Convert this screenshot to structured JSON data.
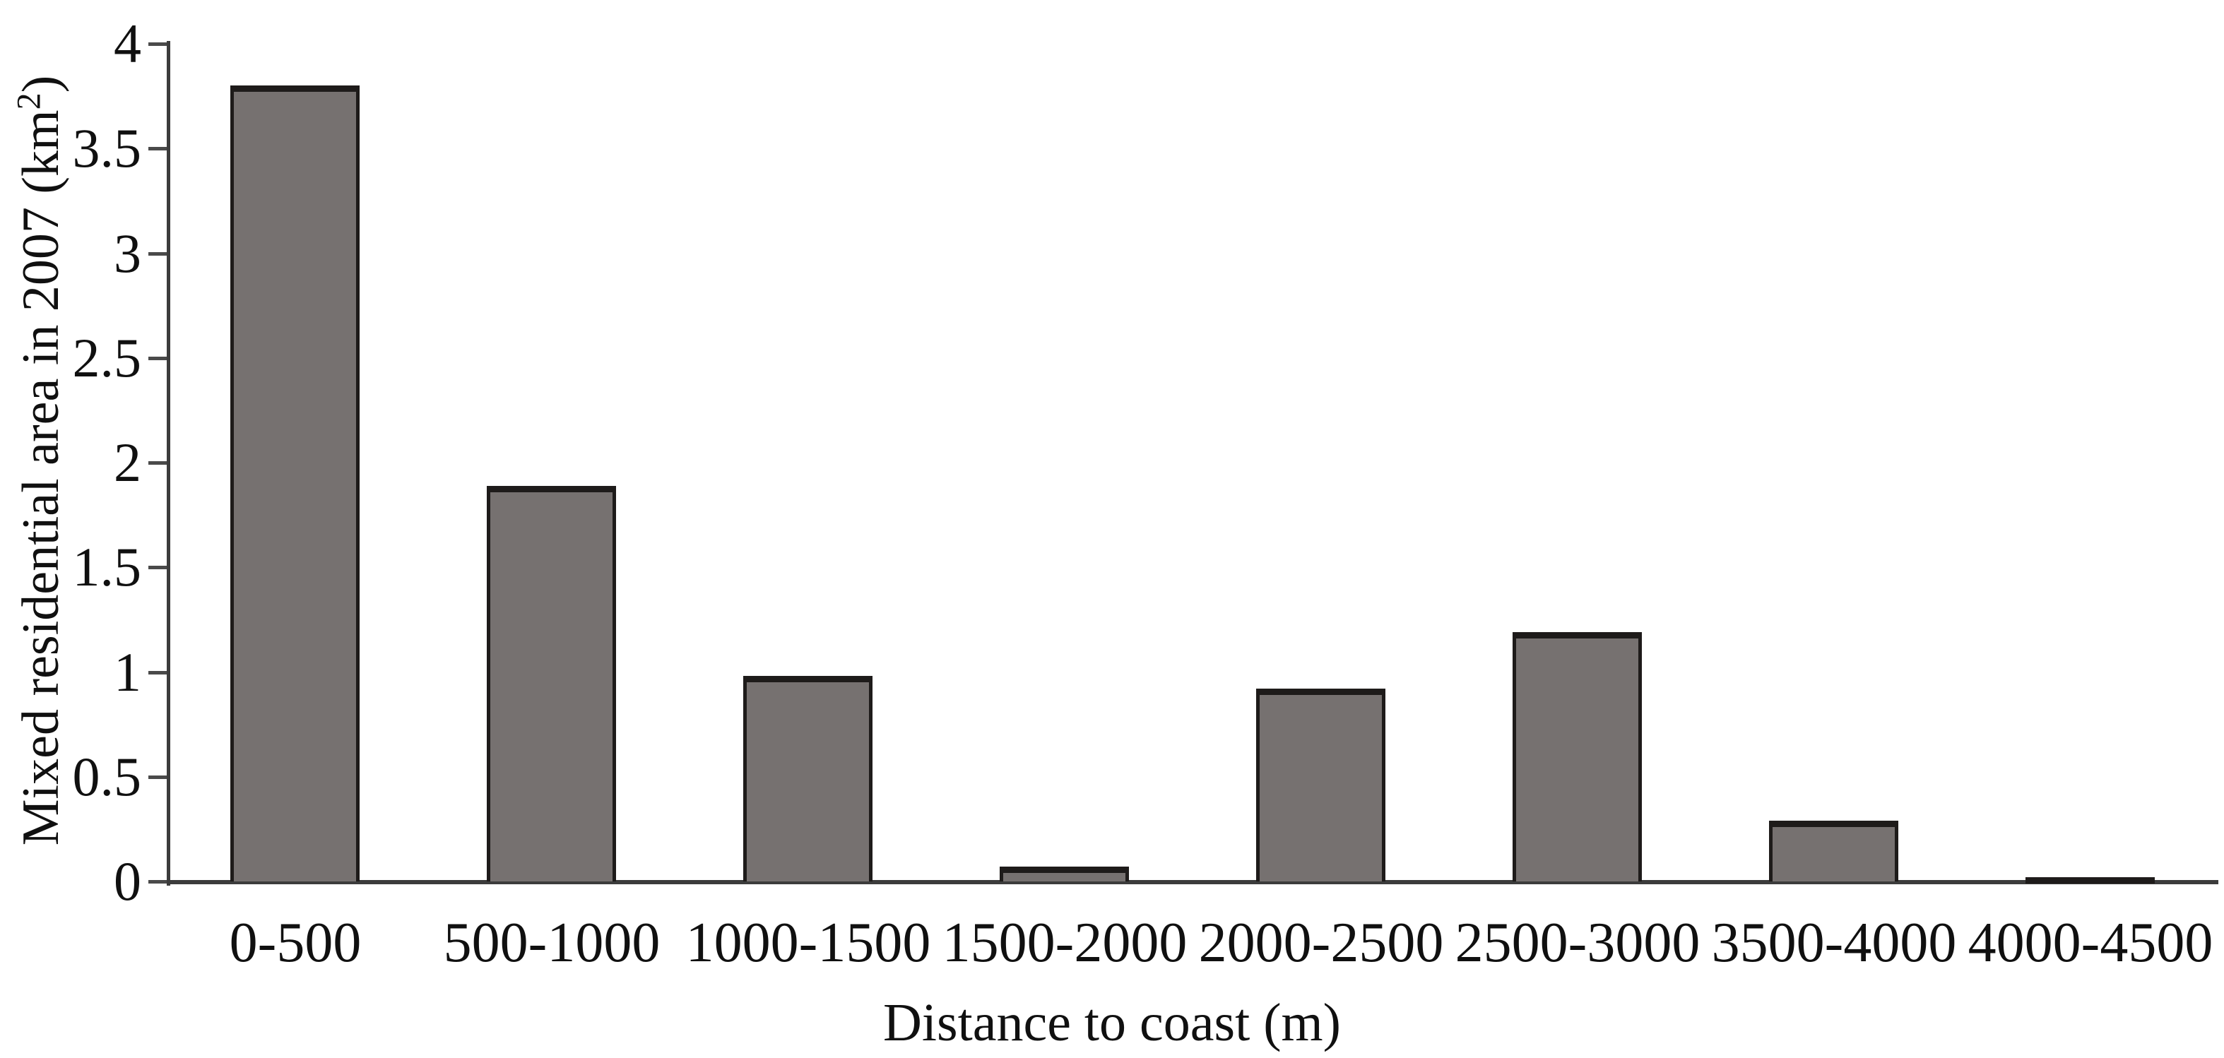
{
  "figure": {
    "kind": "standalone bar chart figure",
    "background": "#ffffff"
  },
  "chart_data": {
    "type": "bar",
    "title": "",
    "categories": [
      "0-500",
      "500-1000",
      "1000-1500",
      "1500-2000",
      "2000-2500",
      "2500-3000",
      "3500-4000",
      "4000-4500"
    ],
    "values": [
      3.8,
      1.89,
      0.98,
      0.07,
      0.92,
      1.19,
      0.29,
      0.02
    ],
    "xlabel": "Distance to coast (m)",
    "ylabel": "Mixed residential area in 2007 (km²)",
    "ylabel_parts": {
      "pre": "Mixed residential area in 2007 (km",
      "sup": "2",
      "post": ")"
    },
    "ylim": [
      0,
      4
    ],
    "y_tick_step": 0.5,
    "y_ticks": [
      "0",
      "0.5",
      "1",
      "1.5",
      "2",
      "2.5",
      "3",
      "3.5",
      "4"
    ],
    "grid": false,
    "legend": "none",
    "bar_fill": "#767170",
    "bar_border": "#1e1b1a",
    "axis_color": "#3c3c3c",
    "text_color": "#101010"
  }
}
